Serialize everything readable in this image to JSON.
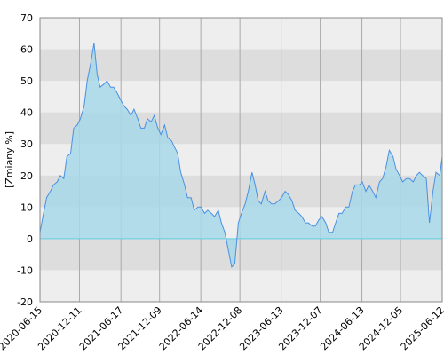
{
  "chart_data": {
    "type": "area",
    "y_label": "[Zmiany %]",
    "x": [
      "2020-06-15",
      "2020-07-01",
      "2020-07-15",
      "2020-08-01",
      "2020-08-15",
      "2020-09-01",
      "2020-09-15",
      "2020-10-01",
      "2020-10-15",
      "2020-11-01",
      "2020-11-15",
      "2020-12-01",
      "2020-12-15",
      "2021-01-01",
      "2021-01-15",
      "2021-02-01",
      "2021-02-15",
      "2021-03-01",
      "2021-03-15",
      "2021-04-01",
      "2021-04-15",
      "2021-05-01",
      "2021-05-15",
      "2021-06-01",
      "2021-06-15",
      "2021-07-01",
      "2021-07-15",
      "2021-08-01",
      "2021-08-15",
      "2021-09-01",
      "2021-09-15",
      "2021-10-01",
      "2021-10-15",
      "2021-11-01",
      "2021-11-15",
      "2021-12-01",
      "2021-12-15",
      "2022-01-01",
      "2022-01-15",
      "2022-02-01",
      "2022-02-15",
      "2022-03-01",
      "2022-03-15",
      "2022-04-01",
      "2022-04-15",
      "2022-05-01",
      "2022-05-15",
      "2022-06-01",
      "2022-06-15",
      "2022-07-01",
      "2022-07-15",
      "2022-08-01",
      "2022-08-15",
      "2022-09-01",
      "2022-09-15",
      "2022-10-01",
      "2022-10-15",
      "2022-11-01",
      "2022-11-15",
      "2022-12-01",
      "2022-12-15",
      "2023-01-01",
      "2023-01-15",
      "2023-02-01",
      "2023-02-15",
      "2023-03-01",
      "2023-03-15",
      "2023-04-01",
      "2023-04-15",
      "2023-05-01",
      "2023-05-15",
      "2023-06-01",
      "2023-06-15",
      "2023-07-01",
      "2023-07-15",
      "2023-08-01",
      "2023-08-15",
      "2023-09-01",
      "2023-09-15",
      "2023-10-01",
      "2023-10-15",
      "2023-11-01",
      "2023-11-15",
      "2023-12-01",
      "2023-12-15",
      "2024-01-01",
      "2024-01-15",
      "2024-02-01",
      "2024-02-15",
      "2024-03-01",
      "2024-03-15",
      "2024-04-01",
      "2024-04-15",
      "2024-05-01",
      "2024-05-15",
      "2024-06-01",
      "2024-06-15",
      "2024-07-01",
      "2024-07-15",
      "2024-08-01",
      "2024-08-15",
      "2024-09-01",
      "2024-09-15",
      "2024-10-01",
      "2024-10-15",
      "2024-11-01",
      "2024-11-15",
      "2024-12-01",
      "2024-12-15",
      "2025-01-01",
      "2025-01-15",
      "2025-02-01",
      "2025-02-15",
      "2025-03-01",
      "2025-03-15",
      "2025-04-01",
      "2025-04-15",
      "2025-05-01",
      "2025-05-15",
      "2025-06-01",
      "2025-06-12"
    ],
    "values": [
      2,
      8,
      13,
      15,
      17,
      18,
      20,
      19,
      26,
      27,
      35,
      36,
      38,
      42,
      50,
      56,
      62,
      52,
      48,
      49,
      50,
      48,
      48,
      46,
      44,
      42,
      41,
      39,
      41,
      38,
      35,
      35,
      38,
      37,
      39,
      35,
      33,
      36,
      32,
      31,
      29,
      27,
      21,
      17,
      13,
      13,
      9,
      10,
      10,
      8,
      9,
      8,
      7,
      9,
      5,
      2,
      -3,
      -9,
      -8,
      5,
      8,
      11,
      15,
      21,
      17,
      12,
      11,
      15,
      12,
      11,
      11,
      12,
      13,
      15,
      14,
      12,
      9,
      8,
      7,
      5,
      5,
      4,
      4,
      6,
      7,
      5,
      2,
      2,
      5,
      8,
      8,
      10,
      10,
      15,
      17,
      17,
      18,
      15,
      17,
      15,
      13,
      18,
      19,
      23,
      28,
      26,
      22,
      20,
      18,
      19,
      19,
      18,
      20,
      21,
      20,
      19,
      5,
      15,
      21,
      20,
      26
    ],
    "line_color": "#4a90e2",
    "fill_color": "#a8d8ea",
    "xlim": [
      "2020-06-15",
      "2025-06-12"
    ],
    "xticks": [
      "2020-06-15",
      "2020-12-11",
      "2021-06-17",
      "2021-12-09",
      "2022-06-14",
      "2022-12-08",
      "2023-06-13",
      "2023-12-07",
      "2024-06-13",
      "2024-12-05",
      "2025-06-12"
    ],
    "ylim": [
      -20,
      70
    ],
    "yticks": [
      -20,
      -10,
      0,
      10,
      20,
      30,
      40,
      50,
      60,
      70
    ],
    "grid": true
  }
}
